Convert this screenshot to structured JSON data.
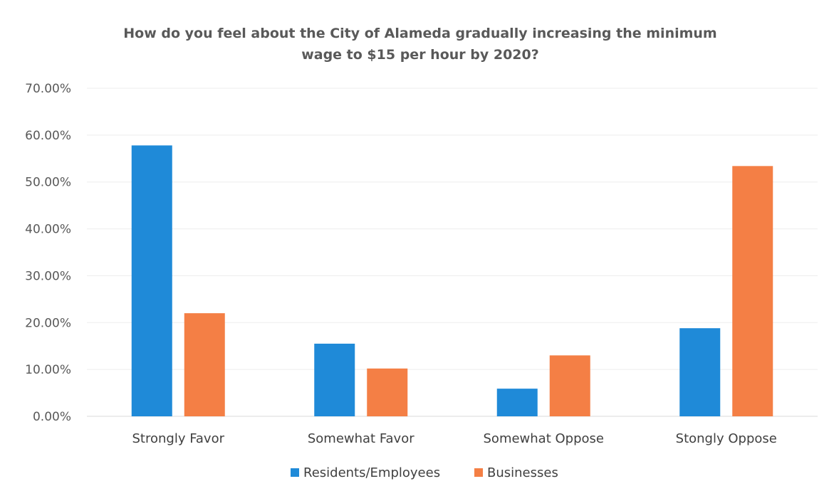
{
  "chart_data": {
    "type": "bar",
    "title_lines": [
      "How do you feel about the City of Alameda gradually increasing the minimum",
      "wage to $15 per hour by 2020?"
    ],
    "categories": [
      "Strongly Favor",
      "Somewhat Favor",
      "Somewhat Oppose",
      "Stongly Oppose"
    ],
    "series": [
      {
        "name": "Residents/Employees",
        "color": "#1F8AD8",
        "values": [
          57.8,
          15.5,
          5.9,
          18.8
        ]
      },
      {
        "name": "Businesses",
        "color": "#F47F45",
        "values": [
          22.0,
          10.2,
          13.0,
          53.4
        ]
      }
    ],
    "ylim": [
      0,
      70
    ],
    "yticks": [
      0,
      10,
      20,
      30,
      40,
      50,
      60,
      70
    ],
    "ytick_labels": [
      "0.00%",
      "10.00%",
      "20.00%",
      "30.00%",
      "40.00%",
      "50.00%",
      "60.00%",
      "70.00%"
    ],
    "grid": true,
    "legend_position": "bottom",
    "xlabel": "",
    "ylabel": ""
  }
}
